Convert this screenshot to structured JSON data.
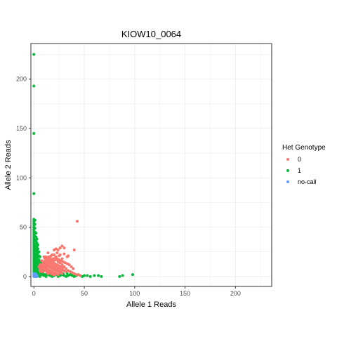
{
  "chart_data": {
    "type": "scatter",
    "title": "KIOW10_0064",
    "xlabel": "Allele 1 Reads",
    "ylabel": "Allele 2 Reads",
    "xlim": [
      -3,
      236
    ],
    "ylim": [
      -10,
      236
    ],
    "x_ticks": [
      0,
      50,
      100,
      150,
      200
    ],
    "y_ticks": [
      0,
      50,
      100,
      150,
      200
    ],
    "grid": true,
    "legend": {
      "title": "Het Genotype",
      "placement": "right",
      "entries": [
        {
          "label": "0",
          "color": "#F8766D"
        },
        {
          "label": "1",
          "color": "#00BA38"
        },
        {
          "label": "no-call",
          "color": "#619CFF"
        }
      ]
    },
    "series": [
      {
        "name": "1",
        "color": "#00BA38",
        "points": [
          [
            0,
            225
          ],
          [
            0,
            193
          ],
          [
            0,
            145
          ],
          [
            0,
            84
          ],
          [
            0,
            58
          ],
          [
            0,
            56
          ],
          [
            0,
            54
          ],
          [
            0,
            52
          ],
          [
            0,
            50
          ],
          [
            0,
            48
          ],
          [
            0,
            46
          ],
          [
            0,
            44
          ],
          [
            0,
            42
          ],
          [
            0,
            40
          ],
          [
            0,
            38
          ],
          [
            0,
            36
          ],
          [
            0,
            34
          ],
          [
            0,
            32
          ],
          [
            0,
            30
          ],
          [
            0,
            28
          ],
          [
            0,
            26
          ],
          [
            0,
            24
          ],
          [
            0,
            22
          ],
          [
            0,
            20
          ],
          [
            0,
            18
          ],
          [
            0,
            16
          ],
          [
            0,
            14
          ],
          [
            0,
            12
          ],
          [
            0,
            10
          ],
          [
            0,
            8
          ],
          [
            0,
            6
          ],
          [
            0,
            4
          ],
          [
            0,
            2
          ],
          [
            1,
            57
          ],
          [
            1,
            53
          ],
          [
            1,
            49
          ],
          [
            1,
            45
          ],
          [
            1,
            41
          ],
          [
            1,
            37
          ],
          [
            1,
            33
          ],
          [
            1,
            29
          ],
          [
            1,
            25
          ],
          [
            1,
            21
          ],
          [
            1,
            17
          ],
          [
            1,
            13
          ],
          [
            1,
            9
          ],
          [
            1,
            5
          ],
          [
            2,
            44
          ],
          [
            2,
            40
          ],
          [
            2,
            36
          ],
          [
            2,
            31
          ],
          [
            2,
            27
          ],
          [
            2,
            23
          ],
          [
            2,
            19
          ],
          [
            2,
            15
          ],
          [
            2,
            11
          ],
          [
            2,
            7
          ],
          [
            2,
            3
          ],
          [
            3,
            38
          ],
          [
            3,
            34
          ],
          [
            3,
            30
          ],
          [
            3,
            26
          ],
          [
            3,
            22
          ],
          [
            3,
            18
          ],
          [
            3,
            14
          ],
          [
            3,
            10
          ],
          [
            3,
            6
          ],
          [
            4,
            32
          ],
          [
            4,
            28
          ],
          [
            4,
            24
          ],
          [
            4,
            20
          ],
          [
            4,
            16
          ],
          [
            4,
            12
          ],
          [
            4,
            8
          ],
          [
            4,
            4
          ],
          [
            5,
            25
          ],
          [
            5,
            21
          ],
          [
            5,
            17
          ],
          [
            5,
            13
          ],
          [
            5,
            9
          ],
          [
            5,
            5
          ],
          [
            6,
            20
          ],
          [
            6,
            15
          ],
          [
            6,
            10
          ],
          [
            7,
            14
          ],
          [
            7,
            8
          ],
          [
            8,
            11
          ],
          [
            8,
            6
          ],
          [
            9,
            7
          ],
          [
            2,
            0
          ],
          [
            4,
            1
          ],
          [
            6,
            0
          ],
          [
            8,
            2
          ],
          [
            10,
            1
          ],
          [
            12,
            0
          ],
          [
            14,
            2
          ],
          [
            16,
            1
          ],
          [
            18,
            0
          ],
          [
            20,
            1
          ],
          [
            22,
            2
          ],
          [
            24,
            0
          ],
          [
            26,
            1
          ],
          [
            28,
            2
          ],
          [
            30,
            1
          ],
          [
            32,
            0
          ],
          [
            34,
            1
          ],
          [
            36,
            2
          ],
          [
            38,
            1
          ],
          [
            40,
            0
          ],
          [
            42,
            1
          ],
          [
            44,
            2
          ],
          [
            46,
            1
          ],
          [
            48,
            0
          ],
          [
            50,
            1
          ],
          [
            53,
            1
          ],
          [
            56,
            0
          ],
          [
            60,
            1
          ],
          [
            64,
            1
          ],
          [
            67,
            0
          ],
          [
            85,
            0
          ],
          [
            88,
            1
          ],
          [
            98,
            2
          ],
          [
            3,
            3
          ],
          [
            5,
            2
          ],
          [
            7,
            3
          ],
          [
            9,
            3
          ],
          [
            11,
            2
          ],
          [
            13,
            3
          ],
          [
            15,
            3
          ],
          [
            17,
            2
          ],
          [
            19,
            3
          ],
          [
            21,
            3
          ],
          [
            25,
            2
          ],
          [
            29,
            3
          ],
          [
            33,
            3
          ],
          [
            37,
            2
          ]
        ]
      },
      {
        "name": "0",
        "color": "#F8766D",
        "points": [
          [
            43,
            56
          ],
          [
            40,
            27
          ],
          [
            28,
            31
          ],
          [
            30,
            29
          ],
          [
            26,
            29
          ],
          [
            24,
            27
          ],
          [
            22,
            28
          ],
          [
            20,
            27
          ],
          [
            34,
            21
          ],
          [
            25,
            21
          ],
          [
            23,
            24
          ],
          [
            30,
            23
          ],
          [
            18,
            22
          ],
          [
            20,
            22
          ],
          [
            14,
            24
          ],
          [
            26,
            22
          ],
          [
            33,
            20
          ],
          [
            28,
            18
          ],
          [
            17,
            21
          ],
          [
            22,
            20
          ],
          [
            10,
            20
          ],
          [
            12,
            20
          ],
          [
            14,
            18
          ],
          [
            16,
            19
          ],
          [
            18,
            17
          ],
          [
            20,
            16
          ],
          [
            22,
            17
          ],
          [
            24,
            15
          ],
          [
            26,
            14
          ],
          [
            28,
            12
          ],
          [
            30,
            10
          ],
          [
            32,
            8
          ],
          [
            34,
            6
          ],
          [
            36,
            5
          ],
          [
            38,
            4
          ],
          [
            40,
            3
          ],
          [
            42,
            2
          ],
          [
            8,
            16
          ],
          [
            10,
            15
          ],
          [
            12,
            17
          ],
          [
            14,
            14
          ],
          [
            16,
            13
          ],
          [
            18,
            12
          ],
          [
            20,
            11
          ],
          [
            22,
            10
          ],
          [
            24,
            9
          ],
          [
            26,
            8
          ],
          [
            28,
            7
          ],
          [
            30,
            6
          ],
          [
            32,
            5
          ],
          [
            6,
            12
          ],
          [
            8,
            12
          ],
          [
            10,
            11
          ],
          [
            12,
            12
          ],
          [
            14,
            10
          ],
          [
            16,
            9
          ],
          [
            18,
            8
          ],
          [
            20,
            7
          ],
          [
            22,
            6
          ],
          [
            24,
            5
          ],
          [
            26,
            4
          ],
          [
            28,
            3
          ],
          [
            6,
            8
          ],
          [
            8,
            8
          ],
          [
            10,
            8
          ],
          [
            12,
            9
          ],
          [
            14,
            7
          ],
          [
            16,
            6
          ],
          [
            18,
            5
          ],
          [
            20,
            4
          ],
          [
            22,
            3
          ],
          [
            24,
            2
          ],
          [
            7,
            5
          ],
          [
            9,
            5
          ],
          [
            11,
            6
          ],
          [
            13,
            5
          ],
          [
            15,
            4
          ],
          [
            17,
            3
          ],
          [
            19,
            2
          ],
          [
            21,
            2
          ],
          [
            9,
            13
          ],
          [
            11,
            14
          ],
          [
            13,
            15
          ],
          [
            15,
            16
          ],
          [
            17,
            15
          ],
          [
            19,
            14
          ],
          [
            21,
            13
          ],
          [
            23,
            12
          ],
          [
            25,
            11
          ],
          [
            27,
            10
          ],
          [
            29,
            9
          ],
          [
            8,
            10
          ],
          [
            10,
            10
          ],
          [
            12,
            10
          ],
          [
            13,
            12
          ],
          [
            15,
            11
          ],
          [
            17,
            10
          ],
          [
            19,
            9
          ],
          [
            21,
            8
          ],
          [
            23,
            7
          ],
          [
            25,
            6
          ],
          [
            27,
            5
          ],
          [
            11,
            18
          ],
          [
            13,
            19
          ],
          [
            15,
            20
          ],
          [
            16,
            17
          ],
          [
            19,
            18
          ],
          [
            21,
            19
          ],
          [
            23,
            18
          ],
          [
            25,
            17
          ],
          [
            27,
            16
          ],
          [
            29,
            15
          ],
          [
            31,
            14
          ],
          [
            33,
            13
          ],
          [
            35,
            12
          ],
          [
            37,
            10
          ],
          [
            39,
            8
          ],
          [
            44,
            2
          ],
          [
            46,
            1
          ],
          [
            5,
            10
          ],
          [
            6,
            6
          ],
          [
            7,
            7
          ],
          [
            9,
            9
          ],
          [
            11,
            8
          ],
          [
            12,
            7
          ],
          [
            13,
            4
          ],
          [
            14,
            3
          ],
          [
            16,
            4
          ],
          [
            18,
            3
          ]
        ]
      },
      {
        "name": "no-call",
        "color": "#619CFF",
        "points": [
          [
            0,
            0
          ],
          [
            1,
            0
          ],
          [
            0,
            1
          ],
          [
            1,
            1
          ],
          [
            2,
            1
          ],
          [
            1,
            2
          ],
          [
            0,
            2
          ],
          [
            2,
            2
          ],
          [
            3,
            1
          ],
          [
            0,
            3
          ],
          [
            1,
            3
          ],
          [
            3,
            0
          ],
          [
            2,
            0
          ]
        ]
      }
    ]
  }
}
